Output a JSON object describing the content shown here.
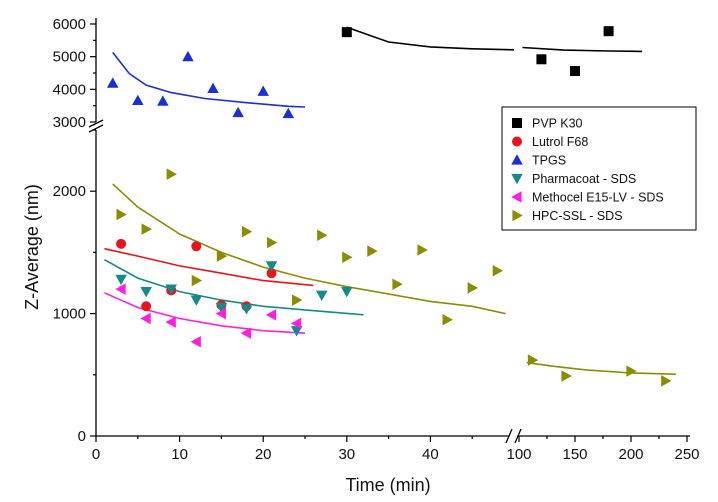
{
  "chart_data": {
    "type": "scatter",
    "xlabel": "Time (min)",
    "ylabel": "Z-Average (nm)",
    "x_segments": [
      {
        "range": [
          0,
          50
        ],
        "ticks": [
          0,
          10,
          20,
          30,
          40
        ]
      },
      {
        "range": [
          100,
          250
        ],
        "ticks": [
          100,
          150,
          200,
          250
        ]
      }
    ],
    "y_segments": [
      {
        "range": [
          0,
          2500
        ],
        "ticks": [
          0,
          1000,
          2000
        ]
      },
      {
        "range": [
          3000,
          6000
        ],
        "ticks": [
          3000,
          4000,
          5000,
          6000
        ]
      }
    ],
    "x_break_between": [
      50,
      100
    ],
    "y_break_between": [
      2500,
      3000
    ],
    "legend_position": "right",
    "series": [
      {
        "name": "PVP K30",
        "marker": "square",
        "color": "#000000",
        "points": [
          [
            30,
            5750
          ],
          [
            120,
            4920
          ],
          [
            150,
            4560
          ],
          [
            180,
            5780
          ]
        ],
        "fits": [
          [
            [
              30,
              5900
            ],
            [
              35,
              5450
            ],
            [
              40,
              5300
            ],
            [
              45,
              5240
            ],
            [
              50,
              5210
            ]
          ],
          [
            [
              103,
              5280
            ],
            [
              140,
              5200
            ],
            [
              180,
              5175
            ],
            [
              210,
              5160
            ]
          ]
        ]
      },
      {
        "name": "Lutrol F68",
        "marker": "circle",
        "color": "#e8141b",
        "points": [
          [
            3,
            1570
          ],
          [
            6,
            1060
          ],
          [
            9,
            1190
          ],
          [
            12,
            1550
          ],
          [
            15,
            1070
          ],
          [
            18,
            1060
          ],
          [
            21,
            1330
          ]
        ],
        "fits": [
          [
            [
              1,
              1530
            ],
            [
              5,
              1470
            ],
            [
              10,
              1390
            ],
            [
              15,
              1330
            ],
            [
              20,
              1270
            ],
            [
              26,
              1230
            ]
          ]
        ]
      },
      {
        "name": "TPGS",
        "marker": "triangle-up",
        "color": "#1a2fd6",
        "points": [
          [
            2,
            4190
          ],
          [
            5,
            3660
          ],
          [
            8,
            3640
          ],
          [
            11,
            5000
          ],
          [
            14,
            4030
          ],
          [
            17,
            3290
          ],
          [
            20,
            3940
          ],
          [
            23,
            3260
          ]
        ],
        "fits": [
          [
            [
              2,
              5130
            ],
            [
              4,
              4480
            ],
            [
              6,
              4130
            ],
            [
              9,
              3900
            ],
            [
              13,
              3720
            ],
            [
              18,
              3590
            ],
            [
              23,
              3480
            ],
            [
              25,
              3460
            ]
          ]
        ]
      },
      {
        "name": "Pharmacoat - SDS",
        "marker": "triangle-down",
        "color": "#148a8a",
        "points": [
          [
            3,
            1280
          ],
          [
            6,
            1180
          ],
          [
            9,
            1200
          ],
          [
            12,
            1110
          ],
          [
            15,
            1050
          ],
          [
            18,
            1040
          ],
          [
            21,
            1390
          ],
          [
            24,
            860
          ],
          [
            27,
            1150
          ],
          [
            30,
            1180
          ]
        ],
        "fits": [
          [
            [
              1,
              1440
            ],
            [
              5,
              1290
            ],
            [
              10,
              1180
            ],
            [
              15,
              1110
            ],
            [
              20,
              1060
            ],
            [
              25,
              1030
            ],
            [
              32,
              990
            ]
          ]
        ]
      },
      {
        "name": "Methocel E15-LV - SDS",
        "marker": "triangle-left",
        "color": "#ff1fe0",
        "points": [
          [
            3,
            1200
          ],
          [
            6,
            960
          ],
          [
            9,
            930
          ],
          [
            12,
            770
          ],
          [
            15,
            1000
          ],
          [
            18,
            840
          ],
          [
            21,
            990
          ],
          [
            24,
            920
          ]
        ],
        "fits": [
          [
            [
              1,
              1170
            ],
            [
              5,
              1050
            ],
            [
              10,
              960
            ],
            [
              15,
              900
            ],
            [
              20,
              860
            ],
            [
              25,
              840
            ]
          ]
        ]
      },
      {
        "name": "HPC-SSL - SDS",
        "marker": "triangle-right",
        "color": "#8c8c00",
        "points": [
          [
            3,
            1810
          ],
          [
            6,
            1690
          ],
          [
            9,
            2140
          ],
          [
            12,
            1270
          ],
          [
            15,
            1470
          ],
          [
            18,
            1670
          ],
          [
            21,
            1580
          ],
          [
            24,
            1110
          ],
          [
            27,
            1640
          ],
          [
            30,
            1460
          ],
          [
            33,
            1510
          ],
          [
            36,
            1240
          ],
          [
            39,
            1520
          ],
          [
            42,
            950
          ],
          [
            45,
            1210
          ],
          [
            48,
            1350
          ],
          [
            112,
            620
          ],
          [
            142,
            490
          ],
          [
            200,
            530
          ],
          [
            231,
            450
          ]
        ],
        "fits": [
          [
            [
              2,
              2060
            ],
            [
              5,
              1870
            ],
            [
              10,
              1650
            ],
            [
              15,
              1500
            ],
            [
              20,
              1380
            ],
            [
              25,
              1290
            ],
            [
              30,
              1220
            ],
            [
              35,
              1160
            ],
            [
              40,
              1100
            ],
            [
              45,
              1060
            ],
            [
              49,
              1000
            ]
          ],
          [
            [
              107,
              600
            ],
            [
              130,
              570
            ],
            [
              160,
              540
            ],
            [
              200,
              515
            ],
            [
              240,
              505
            ]
          ]
        ]
      }
    ]
  }
}
